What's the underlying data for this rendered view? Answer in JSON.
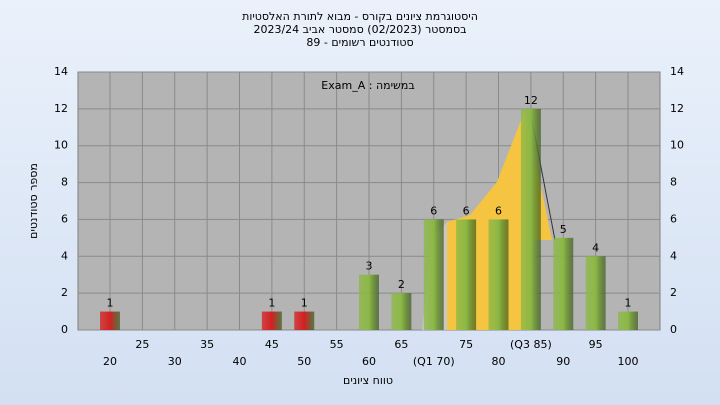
{
  "chart_data": {
    "type": "bar",
    "title": [
      "היסטוגרמת ציונים בקורס - מבוא לתורת האלסטיות",
      "בסמסטר  (02/2023)  סמסטר אביב 2023/24",
      "סטודנטים רשומים - 89"
    ],
    "annotation": "Exam_A : במשימה",
    "xlabel": "טווח ציונים",
    "ylabel": "מספר סטודנטים",
    "categories": [
      "20",
      "25",
      "30",
      "35",
      "40",
      "45",
      "50",
      "55",
      "60",
      "65",
      "(Q1 70)",
      "75",
      "80",
      "(Q3 85)",
      "90",
      "95",
      "100"
    ],
    "values": [
      1,
      0,
      0,
      0,
      0,
      1,
      1,
      0,
      3,
      2,
      6,
      6,
      6,
      12,
      5,
      4,
      1
    ],
    "colors": [
      "#d42020",
      "#d42020",
      "#d42020",
      "#d42020",
      "#d42020",
      "#d42020",
      "#d42020",
      "#d42020",
      "#8cb845",
      "#8cb845",
      "#8cb845",
      "#8cb845",
      "#8cb845",
      "#8cb845",
      "#8cb845",
      "#8cb845",
      "#8cb845"
    ],
    "ylim": [
      0,
      14
    ],
    "yticks": [
      0,
      2,
      4,
      6,
      8,
      10,
      12,
      14
    ],
    "y2lim": [
      0,
      14
    ],
    "y2ticks": [
      0,
      2,
      4,
      6,
      8,
      10,
      12,
      14
    ],
    "grid": true
  }
}
